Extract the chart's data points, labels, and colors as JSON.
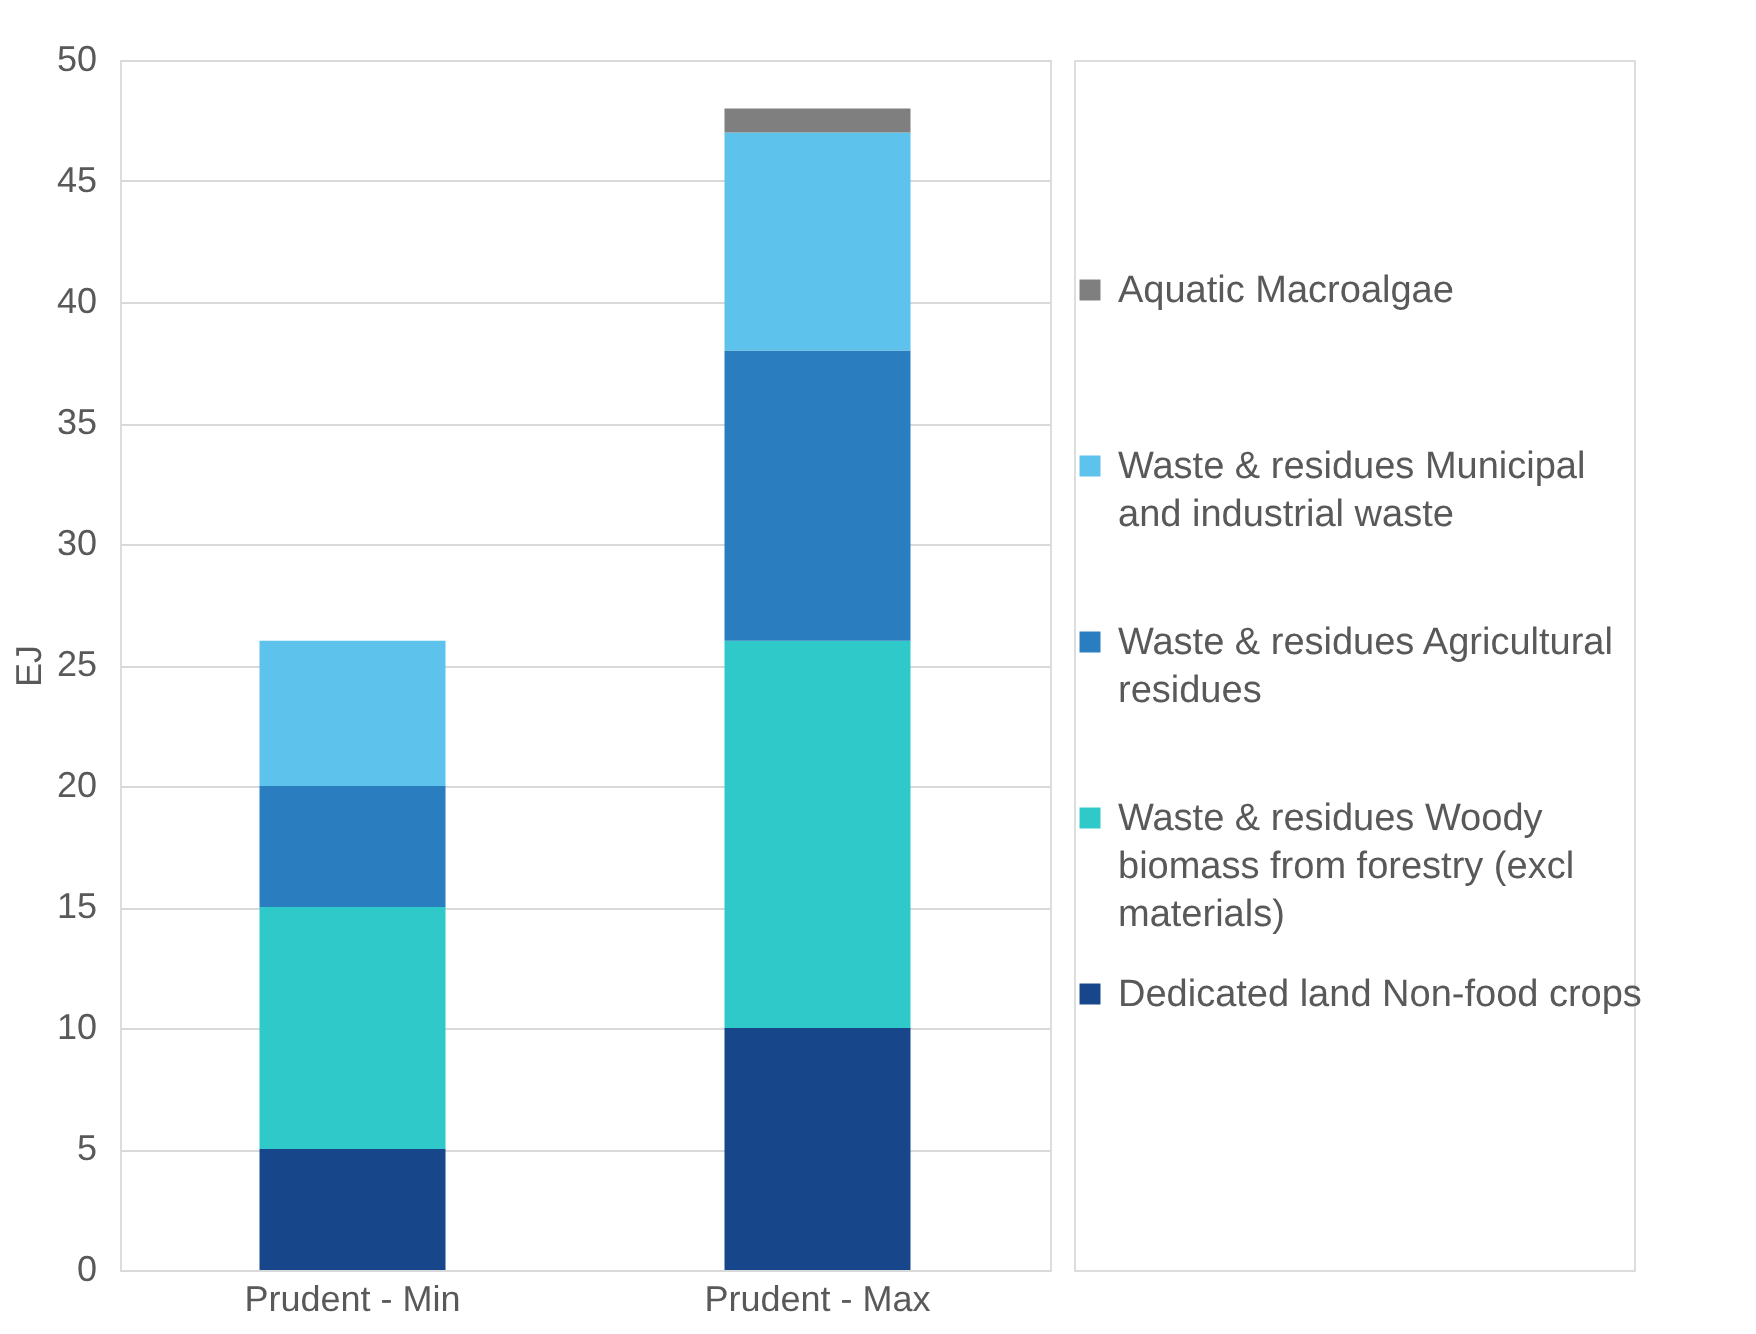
{
  "chart_data": {
    "type": "bar",
    "stacked": true,
    "ylabel": "EJ",
    "categories": [
      "Prudent - Min",
      "Prudent - Max"
    ],
    "series": [
      {
        "name": "Dedicated land Non-food crops",
        "color": "#17468a",
        "values": [
          5,
          10
        ]
      },
      {
        "name": "Waste & residues Woody biomass from forestry (excl materials)",
        "color": "#2ec9c8",
        "values": [
          10,
          16
        ]
      },
      {
        "name": "Waste & residues Agricultural residues",
        "color": "#2a7ec0",
        "values": [
          5,
          12
        ]
      },
      {
        "name": "Waste & residues Municipal and industrial waste",
        "color": "#5dc2ec",
        "values": [
          6,
          9
        ]
      },
      {
        "name": "Aquatic Macroalgae",
        "color": "#7f7f7f",
        "values": [
          null,
          1
        ]
      }
    ],
    "ylim": [
      0,
      50
    ],
    "yticks": [
      0,
      5,
      10,
      15,
      20,
      25,
      30,
      35,
      40,
      45,
      50
    ],
    "grid": "y",
    "legend": "right"
  }
}
